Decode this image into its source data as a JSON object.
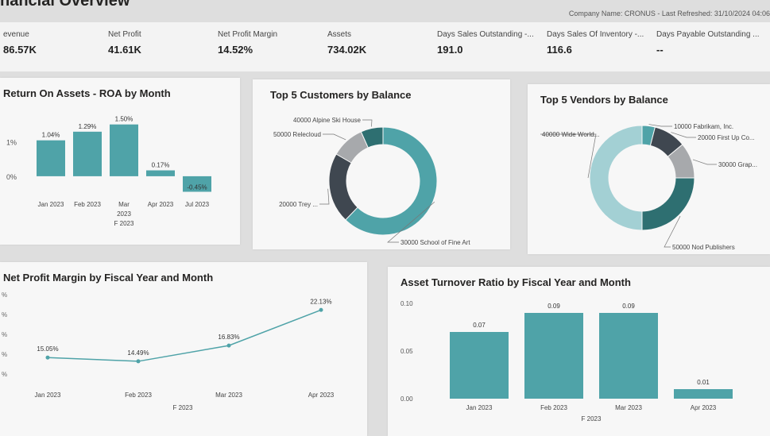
{
  "header": {
    "title": "nancial Overview",
    "company_info": "Company Name: CRONUS - Last Refreshed: 31/10/2024 04:06"
  },
  "kpis": [
    {
      "label": "evenue",
      "value": "86.57K"
    },
    {
      "label": "Net Profit",
      "value": "41.61K"
    },
    {
      "label": "Net Profit Margin",
      "value": "14.52%"
    },
    {
      "label": "Assets",
      "value": "734.02K"
    },
    {
      "label": "Days Sales Outstanding -...",
      "value": "191.0"
    },
    {
      "label": "Days Sales Of Inventory -...",
      "value": "116.6"
    },
    {
      "label": "Days Payable Outstanding ...",
      "value": "--"
    }
  ],
  "colors": {
    "teal": "#4fa3a8",
    "dark_slate": "#3f4750",
    "dark_teal": "#2e6f71",
    "gray": "#a7a9ac",
    "light_teal": "#a3d0d4"
  },
  "chart_data": [
    {
      "type": "bar",
      "title": "Return On Assets - ROA by Month",
      "categories": [
        "Jan 2023",
        "Feb 2023",
        "Mar 2023",
        "Apr 2023",
        "Jul 2023"
      ],
      "values": [
        1.04,
        1.29,
        1.5,
        0.17,
        -0.45
      ],
      "data_labels": [
        "1.04%",
        "1.29%",
        "1.50%",
        "0.17%",
        "-0.45%"
      ],
      "y_ticks": [
        "1%",
        "0%"
      ],
      "x_group": "F 2023",
      "ylim": [
        -0.6,
        1.7
      ]
    },
    {
      "type": "pie",
      "title": "Top 5 Customers by Balance",
      "slices": [
        {
          "label": "30000 School of Fine Art",
          "value": 56,
          "color": "#4fa3a8"
        },
        {
          "label": "20000 Trey ...",
          "value": 19,
          "color": "#3f4750"
        },
        {
          "label": "50000 Relecloud",
          "value": 9,
          "color": "#a7a9ac"
        },
        {
          "label": "40000 Alpine Ski House",
          "value": 6,
          "color": "#2e6f71"
        }
      ]
    },
    {
      "type": "pie",
      "title": "Top 5 Vendors by Balance",
      "slices": [
        {
          "label": "10000 Fabrikam, Inc.",
          "value": 4,
          "color": "#4fa3a8"
        },
        {
          "label": "20000 First Up Co...",
          "value": 10,
          "color": "#3f4750"
        },
        {
          "label": "30000 Grap...",
          "value": 11,
          "color": "#a7a9ac"
        },
        {
          "label": "50000 Nod Publishers",
          "value": 25,
          "color": "#2e6f71"
        },
        {
          "label": "40000 Wide World...",
          "value": 50,
          "color": "#a3d0d4"
        }
      ]
    },
    {
      "type": "line",
      "title": "Net Profit Margin by Fiscal Year and Month",
      "categories": [
        "Jan 2023",
        "Feb 2023",
        "Mar 2023",
        "Apr 2023"
      ],
      "values": [
        15.05,
        14.49,
        16.83,
        22.13
      ],
      "data_labels": [
        "15.05%",
        "14.49%",
        "16.83%",
        "22.13%"
      ],
      "y_ticks": [
        "%",
        "%",
        "%",
        "%",
        "%"
      ],
      "x_group": "F 2023",
      "ylim": [
        12,
        25
      ]
    },
    {
      "type": "bar",
      "title": "Asset Turnover Ratio by Fiscal Year and Month",
      "categories": [
        "Jan 2023",
        "Feb 2023",
        "Mar 2023",
        "Apr 2023"
      ],
      "values": [
        0.07,
        0.09,
        0.09,
        0.01
      ],
      "data_labels": [
        "0.07",
        "0.09",
        "0.09",
        "0.01"
      ],
      "y_ticks": [
        "0.10",
        "0.05",
        "0.00"
      ],
      "x_group": "F 2023",
      "ylim": [
        0,
        0.1
      ]
    }
  ]
}
